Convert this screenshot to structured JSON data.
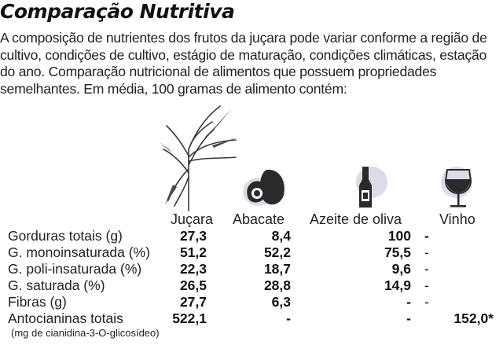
{
  "title": "Comparação Nutritiva",
  "intro": "A composição de nutrientes dos frutos da juçara pode variar conforme a região de cultivo, condições de cultivo, estágio de maturação, condições climáticas, estação do ano. Comparação nutricional de alimentos que possuem propriedades semelhantes. Em média, 100 gramas de alimento contém:",
  "icons": [
    "palm-plant-icon",
    "avocado-icon",
    "olive-oil-bottle-icon",
    "wine-glass-icon"
  ],
  "colors": {
    "blob": "#dcdce8",
    "avocado_dark": "#2a2a2a",
    "plant": "#3a3a3a"
  },
  "columns": [
    "Juçara",
    "Abacate",
    "Azeite de oliva",
    "Vinho"
  ],
  "rows": [
    {
      "label": "Gorduras totais (g)",
      "jucara": "27,3",
      "abacate": "8,4",
      "azeite": "100",
      "vinho": "-"
    },
    {
      "label": "G. monoinsaturada (%)",
      "jucara": "51,2",
      "abacate": "52,2",
      "azeite": "75,5",
      "vinho": "-"
    },
    {
      "label": "G. poli-insaturada (%)",
      "jucara": "22,3",
      "abacate": "18,7",
      "azeite": "9,6",
      "vinho": "-"
    },
    {
      "label": "G. saturada (%)",
      "jucara": "26,5",
      "abacate": "28,8",
      "azeite": "14,9",
      "vinho": "-"
    },
    {
      "label": "Fibras (g)",
      "jucara": "27,7",
      "abacate": "6,3",
      "azeite": "-",
      "vinho": "-"
    },
    {
      "label": "Antocianinas totais",
      "jucara": "522,1",
      "abacate": "-",
      "azeite": "-",
      "vinho": "152,0*"
    }
  ],
  "note": "(mg de cianidina-3-O-glicosídeo)"
}
